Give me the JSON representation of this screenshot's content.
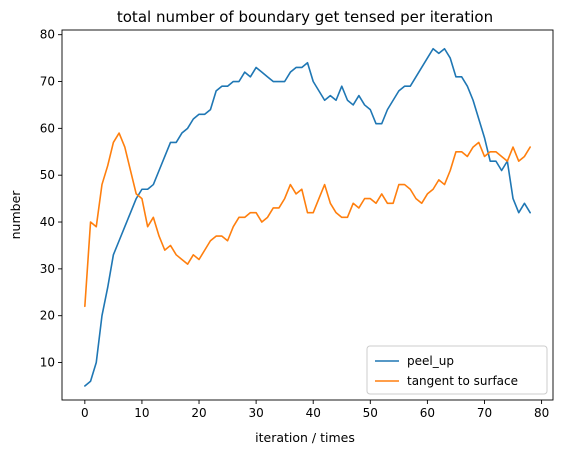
{
  "chart_data": {
    "type": "line",
    "title": "total number of boundary get tensed per iteration",
    "xlabel": "iteration / times",
    "ylabel": "number",
    "xlim": [
      -4,
      82
    ],
    "ylim": [
      2,
      81
    ],
    "xticks": [
      0,
      10,
      20,
      30,
      40,
      50,
      60,
      70,
      80
    ],
    "yticks": [
      10,
      20,
      30,
      40,
      50,
      60,
      70,
      80
    ],
    "grid": false,
    "legend_position": "lower right",
    "x": [
      0,
      1,
      2,
      3,
      4,
      5,
      6,
      7,
      8,
      9,
      10,
      11,
      12,
      13,
      14,
      15,
      16,
      17,
      18,
      19,
      20,
      21,
      22,
      23,
      24,
      25,
      26,
      27,
      28,
      29,
      30,
      31,
      32,
      33,
      34,
      35,
      36,
      37,
      38,
      39,
      40,
      41,
      42,
      43,
      44,
      45,
      46,
      47,
      48,
      49,
      50,
      51,
      52,
      53,
      54,
      55,
      56,
      57,
      58,
      59,
      60,
      61,
      62,
      63,
      64,
      65,
      66,
      67,
      68,
      69,
      70,
      71,
      72,
      73,
      74,
      75,
      76,
      77,
      78
    ],
    "series": [
      {
        "name": "peel_up",
        "color": "#1f77b4",
        "values": [
          5,
          6,
          10,
          20,
          26,
          33,
          36,
          39,
          42,
          45,
          47,
          47,
          48,
          51,
          54,
          57,
          57,
          59,
          60,
          62,
          63,
          63,
          64,
          68,
          69,
          69,
          70,
          70,
          72,
          71,
          73,
          72,
          71,
          70,
          70,
          70,
          72,
          73,
          73,
          74,
          70,
          68,
          66,
          67,
          66,
          69,
          66,
          65,
          67,
          65,
          64,
          61,
          61,
          64,
          66,
          68,
          69,
          69,
          71,
          73,
          75,
          77,
          76,
          77,
          75,
          71,
          71,
          69,
          66,
          62,
          58,
          53,
          53,
          51,
          53,
          45,
          42,
          44,
          42
        ]
      },
      {
        "name": "tangent to surface",
        "color": "#ff7f0e",
        "values": [
          22,
          40,
          39,
          48,
          52,
          57,
          59,
          56,
          51,
          46,
          45,
          39,
          41,
          37,
          34,
          35,
          33,
          32,
          31,
          33,
          32,
          34,
          36,
          37,
          37,
          36,
          39,
          41,
          41,
          42,
          42,
          40,
          41,
          43,
          43,
          45,
          48,
          46,
          47,
          42,
          42,
          45,
          48,
          44,
          42,
          41,
          41,
          44,
          43,
          45,
          45,
          44,
          46,
          44,
          44,
          48,
          48,
          47,
          45,
          44,
          46,
          47,
          49,
          48,
          51,
          55,
          55,
          54,
          56,
          57,
          54,
          55,
          55,
          54,
          53,
          56,
          53,
          54,
          56
        ]
      }
    ]
  }
}
